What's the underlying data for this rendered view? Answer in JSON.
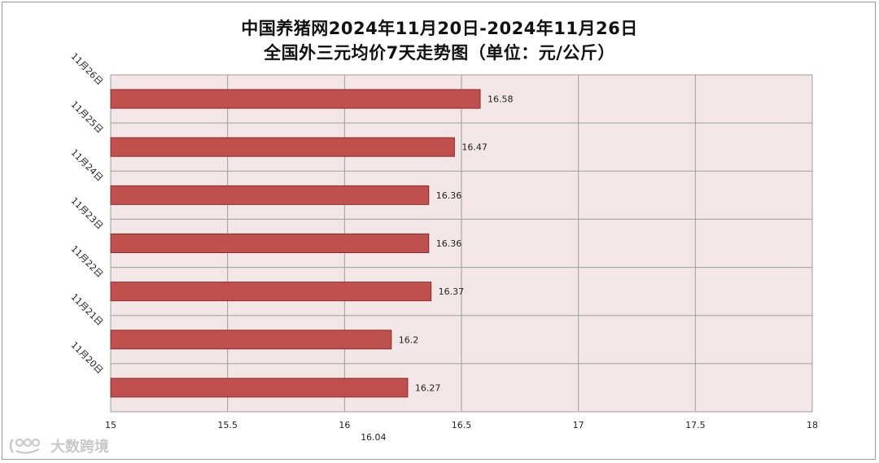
{
  "chart_data": {
    "type": "bar",
    "orientation": "horizontal",
    "title": [
      "中国养猪网2024年11月20日-2024年11月26日",
      "全国外三元均价7天走势图（单位：元/公斤）"
    ],
    "categories": [
      "11月20日",
      "11月21日",
      "11月22日",
      "11月23日",
      "11月24日",
      "11月25日",
      "11月26日"
    ],
    "values": [
      16.27,
      16.2,
      16.37,
      16.36,
      16.36,
      16.47,
      16.58
    ],
    "value_labels": [
      "16.27",
      "16.2",
      "16.37",
      "16.36",
      "16.36",
      "16.47",
      "16.58"
    ],
    "xlim": [
      15,
      18
    ],
    "x_ticks": [
      15,
      15.5,
      16,
      16.5,
      17,
      17.5,
      18
    ],
    "x_tick_labels": [
      "15",
      "15.5",
      "16",
      "16.5",
      "17",
      "17.5",
      "18"
    ],
    "axis_annotation": "16.04",
    "grid": true,
    "legend": "none",
    "colors": {
      "bar": "#c0504d",
      "bar_edge": "#8c2d2a",
      "plot_background": "#f2e6e6",
      "grid": "#9e9e9e"
    }
  },
  "watermark": {
    "text": "大数跨境",
    "icon": "dashuju-logo-icon"
  }
}
